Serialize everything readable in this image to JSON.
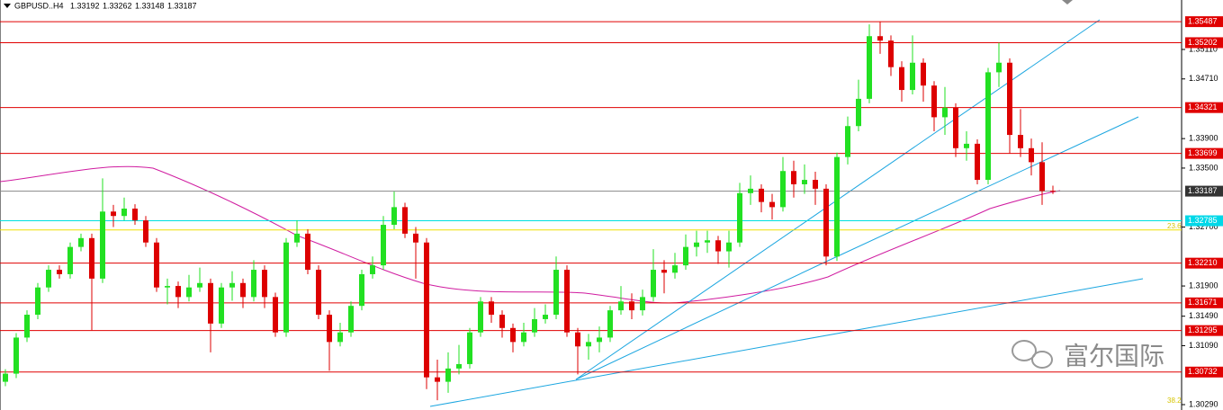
{
  "chart_data": {
    "type": "candlestick",
    "title": "GBPUSD..H4",
    "watermark": "富尔国际",
    "ylim": [
      1.30217,
      1.35781
    ],
    "yticks": [
      {
        "value": 1.3511,
        "label": "1.35110"
      },
      {
        "value": 1.3471,
        "label": "1.34710"
      },
      {
        "value": 1.339,
        "label": "1.33900"
      },
      {
        "value": 1.335,
        "label": "1.33500"
      },
      {
        "value": 1.327,
        "label": "1.32700"
      },
      {
        "value": 1.319,
        "label": "1.31900"
      },
      {
        "value": 1.3149,
        "label": "1.31490"
      },
      {
        "value": 1.3109,
        "label": "1.31090"
      },
      {
        "value": 1.3029,
        "label": "1.30290"
      }
    ],
    "levels": [
      1.35487,
      1.35202,
      1.34321,
      1.33699,
      {
        "value": 1.3221,
        "label": "1.32210"
      },
      1.31671,
      1.31295,
      1.30732
    ],
    "level_color": "#e00000",
    "current_price": 1.33187,
    "cyan_level": 1.32785,
    "fib": [
      {
        "level": 23.6,
        "price": 1.3266
      },
      {
        "level": 38.2,
        "price": 1.3029
      }
    ],
    "bull_color": "#22e022",
    "bear_color": "#dd0000",
    "open": [
      1.306,
      1.3071,
      1.312,
      1.3151,
      1.3188,
      1.3212,
      1.3206,
      1.3243,
      1.3255,
      1.32,
      1.3291,
      1.3285,
      1.3295,
      1.3279,
      1.3249,
      1.3188,
      1.319,
      1.3175,
      1.3188,
      1.3194,
      1.3139,
      1.3188,
      1.3194,
      1.3175,
      1.3212,
      1.3175,
      1.3127,
      1.3249,
      1.3261,
      1.3212,
      1.3151,
      1.3114,
      1.3127,
      1.3163,
      1.3206,
      1.3218,
      1.3273,
      1.3297,
      1.3261,
      1.3249,
      1.3066,
      1.306,
      1.3078,
      1.3084,
      1.3127,
      1.3169,
      1.3151,
      1.3133,
      1.3114,
      1.3127,
      1.3145,
      1.3151,
      1.3212,
      1.3127,
      1.3108,
      1.3114,
      1.312,
      1.3157,
      1.3169,
      1.3157,
      1.3175,
      1.3212,
      1.3208,
      1.3218,
      1.3243,
      1.3249,
      1.3252,
      1.3237,
      1.3249,
      1.3316,
      1.3322,
      1.3304,
      1.3297,
      1.3346,
      1.3328,
      1.3334,
      1.3322,
      1.323,
      1.3365,
      1.3407,
      1.3444,
      1.3529,
      1.3523,
      1.3487,
      1.3456,
      1.3493,
      1.3462,
      1.3419,
      1.3432,
      1.3377,
      1.3383,
      1.3334,
      1.348,
      1.3493,
      1.3395,
      1.3377,
      1.3358,
      1.33192
    ],
    "high": [
      1.3077,
      1.3126,
      1.3157,
      1.3194,
      1.3218,
      1.3218,
      1.3249,
      1.3261,
      1.3261,
      1.3336,
      1.33,
      1.331,
      1.3301,
      1.3285,
      1.3255,
      1.32,
      1.3196,
      1.3205,
      1.3215,
      1.32,
      1.3194,
      1.321,
      1.32,
      1.3225,
      1.3218,
      1.3181,
      1.3255,
      1.3279,
      1.3267,
      1.3218,
      1.3157,
      1.314,
      1.3169,
      1.3212,
      1.323,
      1.3285,
      1.3318,
      1.3303,
      1.327,
      1.3255,
      1.309,
      1.31,
      1.311,
      1.3133,
      1.3175,
      1.3175,
      1.3157,
      1.3139,
      1.314,
      1.316,
      1.3165,
      1.323,
      1.3218,
      1.3133,
      1.3125,
      1.3135,
      1.3163,
      1.319,
      1.318,
      1.3185,
      1.324,
      1.3225,
      1.3235,
      1.326,
      1.3265,
      1.3265,
      1.3258,
      1.3265,
      1.333,
      1.334,
      1.3328,
      1.3315,
      1.3365,
      1.336,
      1.3355,
      1.3345,
      1.3328,
      1.3371,
      1.342,
      1.347,
      1.3545,
      1.3549,
      1.353,
      1.3495,
      1.353,
      1.3499,
      1.3468,
      1.346,
      1.3438,
      1.34,
      1.3389,
      1.3486,
      1.352,
      1.3499,
      1.343,
      1.339,
      1.3385,
      1.33262
    ],
    "low": [
      1.3054,
      1.3065,
      1.3114,
      1.3145,
      1.3182,
      1.32,
      1.32,
      1.3237,
      1.313,
      1.3194,
      1.327,
      1.3279,
      1.3273,
      1.3243,
      1.3182,
      1.3165,
      1.316,
      1.3169,
      1.3182,
      1.31,
      1.3133,
      1.317,
      1.316,
      1.3169,
      1.316,
      1.3121,
      1.3121,
      1.3243,
      1.3206,
      1.3145,
      1.3075,
      1.3108,
      1.3121,
      1.3157,
      1.32,
      1.3212,
      1.3267,
      1.3255,
      1.32,
      1.305,
      1.3035,
      1.3045,
      1.307,
      1.3078,
      1.3121,
      1.314,
      1.312,
      1.31,
      1.3108,
      1.3121,
      1.3139,
      1.3145,
      1.3121,
      1.307,
      1.309,
      1.31,
      1.3114,
      1.3151,
      1.3145,
      1.315,
      1.3169,
      1.318,
      1.32,
      1.3212,
      1.323,
      1.3235,
      1.322,
      1.3215,
      1.3243,
      1.33,
      1.329,
      1.328,
      1.3291,
      1.331,
      1.3315,
      1.33,
      1.3218,
      1.3224,
      1.3355,
      1.34,
      1.3438,
      1.3505,
      1.3475,
      1.344,
      1.345,
      1.344,
      1.34,
      1.3395,
      1.3365,
      1.336,
      1.3328,
      1.3328,
      1.346,
      1.337,
      1.3365,
      1.334,
      1.33,
      1.33148
    ],
    "close": [
      1.3071,
      1.312,
      1.3151,
      1.3188,
      1.3212,
      1.3206,
      1.3243,
      1.3255,
      1.32,
      1.3291,
      1.3285,
      1.3295,
      1.3279,
      1.3249,
      1.3188,
      1.319,
      1.3175,
      1.3188,
      1.3194,
      1.3139,
      1.3188,
      1.3194,
      1.3175,
      1.3212,
      1.3175,
      1.3127,
      1.3249,
      1.3261,
      1.3212,
      1.3151,
      1.3114,
      1.3127,
      1.3163,
      1.3206,
      1.3218,
      1.3273,
      1.3297,
      1.3261,
      1.3249,
      1.3066,
      1.306,
      1.3078,
      1.3084,
      1.3127,
      1.3169,
      1.3151,
      1.3133,
      1.3114,
      1.3127,
      1.3145,
      1.3151,
      1.3212,
      1.3127,
      1.3108,
      1.3114,
      1.312,
      1.3157,
      1.3169,
      1.3157,
      1.3175,
      1.3212,
      1.3208,
      1.3218,
      1.3243,
      1.3249,
      1.3252,
      1.3237,
      1.3249,
      1.3316,
      1.3322,
      1.3304,
      1.3297,
      1.3346,
      1.3328,
      1.3334,
      1.3322,
      1.323,
      1.3365,
      1.3407,
      1.3444,
      1.3529,
      1.3523,
      1.3487,
      1.3456,
      1.3493,
      1.3462,
      1.3419,
      1.3432,
      1.3377,
      1.3383,
      1.3334,
      1.348,
      1.3493,
      1.3395,
      1.3377,
      1.3358,
      1.3319,
      1.33187
    ]
  }
}
